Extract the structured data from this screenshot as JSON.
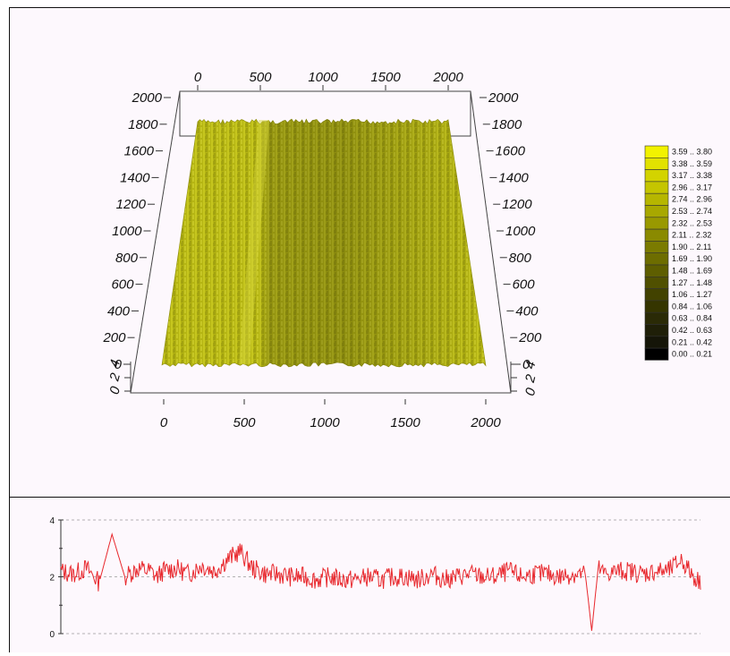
{
  "chart_data": [
    {
      "type": "surface3d",
      "axes": {
        "x_ticks": [
          "0",
          "500",
          "1000",
          "1500",
          "2000"
        ],
        "y_ticks": [
          "0",
          "200",
          "400",
          "600",
          "800",
          "1000",
          "1200",
          "1400",
          "1600",
          "1800",
          "2000"
        ],
        "z_ticks": [
          "0",
          "2",
          "4"
        ],
        "xlim": [
          0,
          2000
        ],
        "ylim": [
          0,
          2000
        ],
        "zlim": [
          0,
          4
        ]
      },
      "surface_color": "#b5b513",
      "legend_position": "right",
      "legend": [
        {
          "range": "3.59 .. 3.80",
          "color": "#f2f200"
        },
        {
          "range": "3.38 .. 3.59",
          "color": "#e2e200"
        },
        {
          "range": "3.17 .. 3.38",
          "color": "#d3d300"
        },
        {
          "range": "2.96 .. 3.17",
          "color": "#c5c500"
        },
        {
          "range": "2.74 .. 2.96",
          "color": "#b6b600"
        },
        {
          "range": "2.53 .. 2.74",
          "color": "#a8a800"
        },
        {
          "range": "2.32 .. 2.53",
          "color": "#999900"
        },
        {
          "range": "2.11 .. 2.32",
          "color": "#8a8a00"
        },
        {
          "range": "1.90 .. 2.11",
          "color": "#7b7b00"
        },
        {
          "range": "1.69 .. 1.90",
          "color": "#6d6d00"
        },
        {
          "range": "1.48 .. 1.69",
          "color": "#5e5e00"
        },
        {
          "range": "1.27 .. 1.48",
          "color": "#505000"
        },
        {
          "range": "1.06 .. 1.27",
          "color": "#424200"
        },
        {
          "range": "0.84 .. 1.06",
          "color": "#353500"
        },
        {
          "range": "0.63 .. 0.84",
          "color": "#2a2a06"
        },
        {
          "range": "0.42 .. 0.63",
          "color": "#1f1f08"
        },
        {
          "range": "0.21 .. 0.42",
          "color": "#151508"
        },
        {
          "range": "0.00 .. 0.21",
          "color": "#000000"
        }
      ]
    },
    {
      "type": "line",
      "y_ticks": [
        "0",
        "2",
        "4"
      ],
      "ylim": [
        0,
        4
      ],
      "xlim": [
        0,
        2000
      ],
      "grid": "dashed horizontal",
      "line_color": "#e8282d",
      "series": [
        {
          "x": [
            0,
            40,
            80,
            120,
            160,
            200,
            240,
            280,
            300,
            320,
            360,
            400,
            440,
            480,
            520,
            560,
            600,
            640,
            680,
            720,
            760,
            800,
            840,
            880,
            920,
            960,
            1000,
            1040,
            1080,
            1120,
            1160,
            1200,
            1240,
            1280,
            1320,
            1360,
            1400,
            1440,
            1480,
            1520,
            1560,
            1600,
            1640,
            1660,
            1680,
            1700,
            1740,
            1780,
            1820,
            1860,
            1900,
            1940,
            1980,
            2000
          ],
          "values": [
            2.2,
            2.1,
            2.3,
            1.8,
            3.5,
            2.0,
            2.3,
            2.2,
            2.0,
            2.2,
            2.3,
            2.1,
            2.4,
            2.2,
            2.6,
            2.9,
            2.3,
            2.1,
            2.1,
            2.0,
            2.0,
            1.9,
            2.0,
            1.9,
            1.9,
            2.0,
            1.9,
            2.0,
            2.0,
            1.9,
            2.1,
            1.9,
            2.0,
            2.1,
            2.0,
            2.0,
            2.2,
            2.0,
            2.1,
            2.1,
            2.0,
            2.1,
            2.1,
            0.1,
            2.3,
            2.1,
            2.2,
            2.2,
            2.1,
            2.2,
            2.2,
            2.6,
            2.0,
            1.8
          ]
        }
      ]
    }
  ]
}
